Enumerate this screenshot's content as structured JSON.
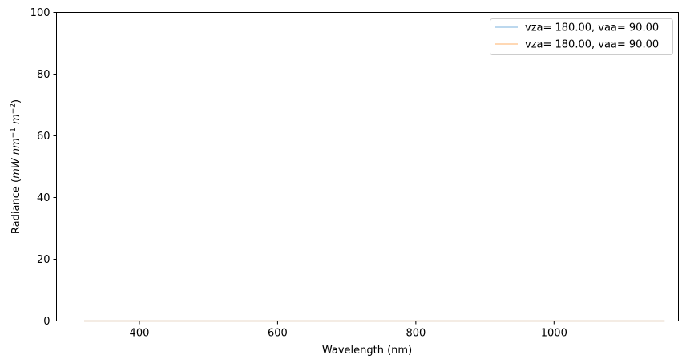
{
  "chart_data": {
    "type": "line",
    "xlabel": "Wavelength (nm)",
    "ylabel": {
      "prefix": "Radiance (",
      "unit_main": "mW nm",
      "unit_exp1": "−1",
      "unit_mid": " m",
      "unit_exp2": "−2",
      "suffix": ")"
    },
    "xlim": [
      280,
      1180
    ],
    "ylim": [
      0,
      100
    ],
    "xticks": [
      400,
      600,
      800,
      1000
    ],
    "yticks": [
      0,
      20,
      40,
      60,
      80,
      100
    ],
    "grid": false,
    "legend_position": "top-right",
    "series": [
      {
        "name": "vza= 180.00, vaa= 90.00",
        "color": "#a6cbe9",
        "x": [
          320,
          1160
        ],
        "y": [
          0,
          0
        ]
      },
      {
        "name": "vza= 180.00, vaa= 90.00",
        "color": "#ffcb9c",
        "x": [
          320,
          1160
        ],
        "y": [
          0,
          0
        ]
      }
    ]
  }
}
